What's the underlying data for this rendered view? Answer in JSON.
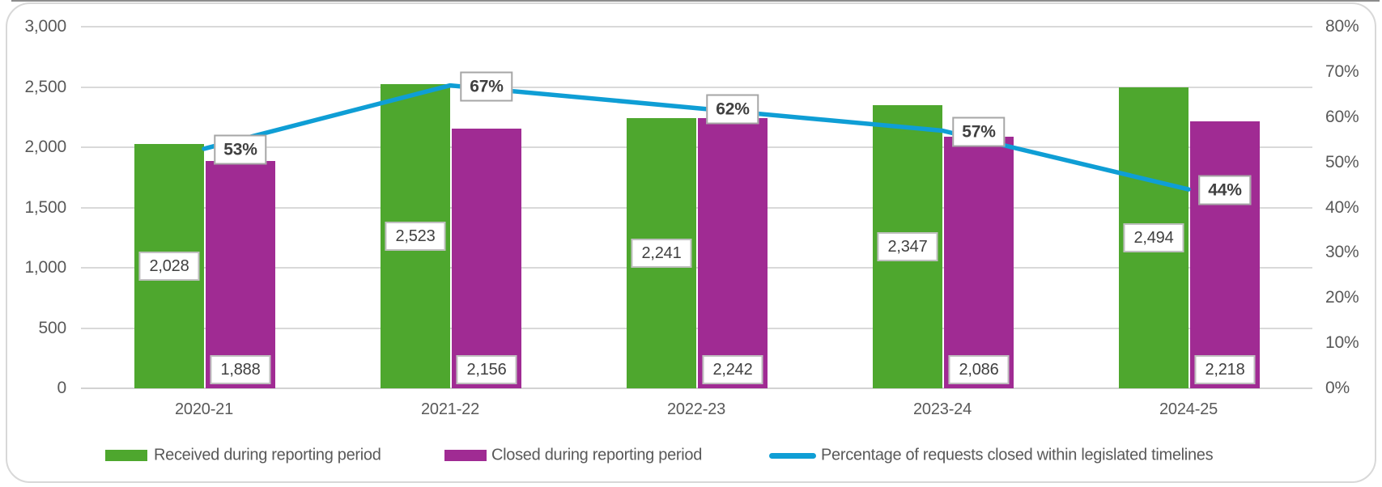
{
  "chart_data": {
    "type": "combo-bar-line",
    "categories": [
      "2020-21",
      "2021-22",
      "2022-23",
      "2023-24",
      "2024-25"
    ],
    "series": [
      {
        "name": "Received during reporting period",
        "type": "bar",
        "axis": "left",
        "color": "#4EA72E",
        "values": [
          2028,
          2523,
          2241,
          2347,
          2494
        ],
        "data_labels": [
          "2,028",
          "2,523",
          "2,241",
          "2,347",
          "2,494"
        ],
        "label_position": "center"
      },
      {
        "name": "Closed during reporting period",
        "type": "bar",
        "axis": "left",
        "color": "#A02B93",
        "values": [
          1888,
          2156,
          2242,
          2086,
          2218
        ],
        "data_labels": [
          "1,888",
          "2,156",
          "2,242",
          "2,086",
          "2,218"
        ],
        "label_position": "inside-base"
      },
      {
        "name": "Percentage of requests closed within legislated timelines",
        "type": "line",
        "axis": "right",
        "color": "#0F9ED5",
        "values": [
          53,
          67,
          62,
          57,
          44
        ],
        "data_labels": [
          "53%",
          "67%",
          "62%",
          "57%",
          "44%"
        ],
        "label_position": "right-of-point"
      }
    ],
    "left_axis": {
      "min": 0,
      "max": 3000,
      "step": 500,
      "ticks": [
        "3,000",
        "2,500",
        "2,000",
        "1,500",
        "1,000",
        "500",
        "0"
      ]
    },
    "right_axis": {
      "min": 0,
      "max": 80,
      "step": 10,
      "ticks": [
        "80%",
        "70%",
        "60%",
        "50%",
        "40%",
        "30%",
        "20%",
        "10%",
        "0%"
      ]
    },
    "grid": true,
    "legend_position": "bottom"
  },
  "colors": {
    "background": "#FFFFFF",
    "grid": "#D9D9D9",
    "axis_line": "#D2D2D2",
    "axis_text": "#595959",
    "label_text": "#404040",
    "value_box_border": "#BFBFBF",
    "pct_box_border": "#A6A6A6",
    "frame_border": "#D8D8D8",
    "top_edge": "#8C8C8C"
  }
}
